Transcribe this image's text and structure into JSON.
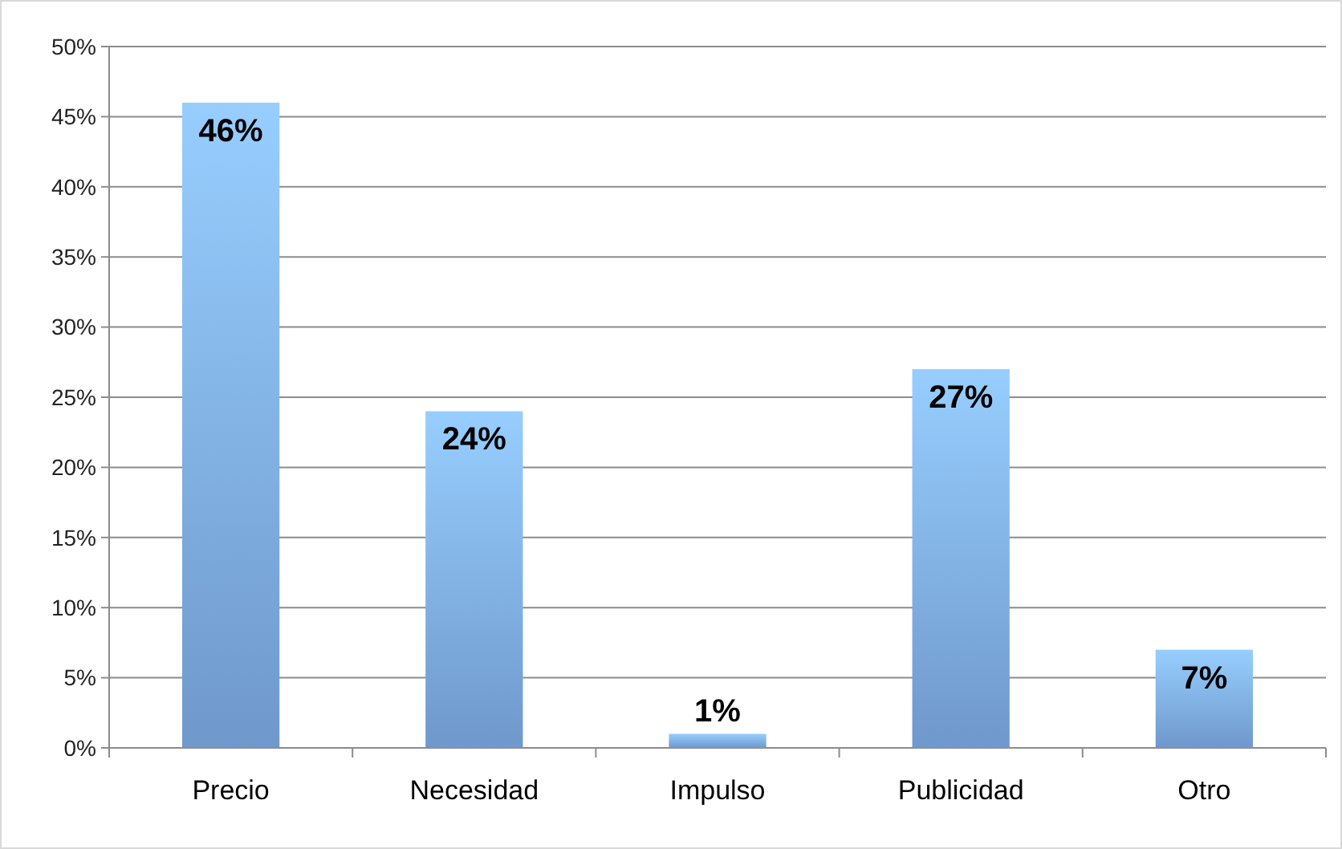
{
  "chart_data": {
    "type": "bar",
    "categories": [
      "Precio",
      "Necesidad",
      "Impulso",
      "Publicidad",
      "Otro"
    ],
    "values": [
      46,
      24,
      1,
      27,
      7
    ],
    "value_labels": [
      "46%",
      "24%",
      "1%",
      "27%",
      "7%"
    ],
    "color": "#7eace6",
    "ylim": [
      0,
      50
    ],
    "yticks": [
      {
        "value": 0,
        "label": "0%"
      },
      {
        "value": 5,
        "label": "5%"
      },
      {
        "value": 10,
        "label": "10%"
      },
      {
        "value": 15,
        "label": "15%"
      },
      {
        "value": 20,
        "label": "20%"
      },
      {
        "value": 25,
        "label": "25%"
      },
      {
        "value": 30,
        "label": "30%"
      },
      {
        "value": 35,
        "label": "35%"
      },
      {
        "value": 40,
        "label": "40%"
      },
      {
        "value": 45,
        "label": "45%"
      },
      {
        "value": 50,
        "label": "50%"
      }
    ],
    "grid": "y"
  }
}
